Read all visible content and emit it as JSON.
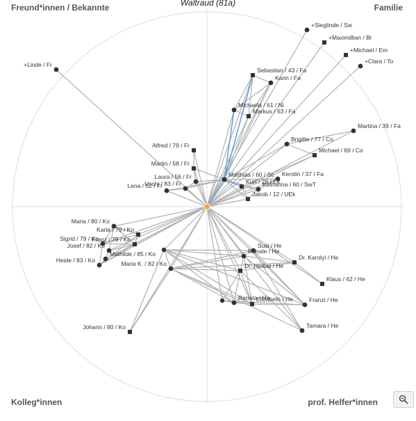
{
  "title": "Waltraud (81a)",
  "quadrants": {
    "top_left": "Freund*innen / Bekannte",
    "top_right": "Familie",
    "bottom_left": "Kolleg*innen",
    "bottom_right": "prof. Helfer*innen"
  },
  "colors": {
    "ego": "#f5a623",
    "node": "#333333",
    "edge": "#b0b0b0",
    "edge_highlight": "#6f9fd8",
    "circle": "#dddddd"
  },
  "icons": {
    "zoom": "zoom-icon"
  },
  "nodes": [
    {
      "id": "sieglinde",
      "label": "+Sieglinde / Sw",
      "shape": "circle"
    },
    {
      "id": "maximillian",
      "label": "+Maximillian / Br",
      "shape": "square"
    },
    {
      "id": "michael_em",
      "label": "+Michael / Em",
      "shape": "square"
    },
    {
      "id": "clara",
      "label": "+Clara / To",
      "shape": "circle"
    },
    {
      "id": "linde",
      "label": "+Linde / Fr",
      "shape": "circle"
    },
    {
      "id": "sebastian",
      "label": "Sebastian / 43 / Fa",
      "shape": "square"
    },
    {
      "id": "karin",
      "label": "Karin / Fa",
      "shape": "circle"
    },
    {
      "id": "michaela",
      "label": "Michaela / 61 / Ni",
      "shape": "circle"
    },
    {
      "id": "markus",
      "label": "Markus / 63 / Fa",
      "shape": "square"
    },
    {
      "id": "martina",
      "label": "Martina / 39 / Fa",
      "shape": "circle"
    },
    {
      "id": "brigitte",
      "label": "Brigitte / 77 / Co",
      "shape": "circle"
    },
    {
      "id": "michael_co",
      "label": "Michael / 69 / Co",
      "shape": "square"
    },
    {
      "id": "alfred",
      "label": "Alfred / 79 / Fr",
      "shape": "square"
    },
    {
      "id": "martin",
      "label": "Martin / 58 / Fr",
      "shape": "square"
    },
    {
      "id": "matthias",
      "label": "Matthias / 60 / Sc",
      "shape": "square"
    },
    {
      "id": "kerstin",
      "label": "Kerstin / 37 / Fa",
      "shape": "circle"
    },
    {
      "id": "laura",
      "label": "Laura / 56 / Fr",
      "shape": "circle"
    },
    {
      "id": "kurt",
      "label": "Kurt / 28 / Ek",
      "shape": "square"
    },
    {
      "id": "uschi",
      "label": "Uschi / 83 / Fr",
      "shape": "circle"
    },
    {
      "id": "katharina",
      "label": "Katharina / 60 / SwT",
      "shape": "circle"
    },
    {
      "id": "lena",
      "label": "Lena / 52 / Fr",
      "shape": "circle"
    },
    {
      "id": "jakob",
      "label": "Jakob / 12 / UEk",
      "shape": "square"
    },
    {
      "id": "maria80",
      "label": "Maria / 80 / Ko",
      "shape": "circle"
    },
    {
      "id": "karla",
      "label": "Karla / 79 / Ko",
      "shape": "square"
    },
    {
      "id": "franz",
      "label": "Franz / 79 / Ko",
      "shape": "square"
    },
    {
      "id": "sigrid",
      "label": "Sigrid / 79 / Ko",
      "shape": "circle"
    },
    {
      "id": "josef",
      "label": "Josef / 82 / Ko",
      "shape": "circle"
    },
    {
      "id": "mathilde",
      "label": "Mathilde / 85 / Ko",
      "shape": "circle"
    },
    {
      "id": "heide",
      "label": "Heide / 83 / Ko",
      "shape": "circle"
    },
    {
      "id": "mariak",
      "label": "Maria K. / 82 / Ko",
      "shape": "circle"
    },
    {
      "id": "johann",
      "label": "Johann / 80 / Ko",
      "shape": "square"
    },
    {
      "id": "susi",
      "label": "Susi / He",
      "shape": "circle"
    },
    {
      "id": "renate",
      "label": "Renate / He",
      "shape": "circle"
    },
    {
      "id": "karolyi",
      "label": "Dr. Karolyi / He",
      "shape": "square"
    },
    {
      "id": "herbst",
      "label": "Dr. Herbst / He",
      "shape": "square"
    },
    {
      "id": "klaus",
      "label": "Klaus / 62 / He",
      "shape": "square"
    },
    {
      "id": "renata",
      "label": "Renata / He",
      "shape": "circle"
    },
    {
      "id": "elizabeth",
      "label": "Elizabeth / He",
      "shape": "square"
    },
    {
      "id": "franzi",
      "label": "Franzi / He",
      "shape": "circle"
    },
    {
      "id": "tamara",
      "label": "Tamara / He",
      "shape": "circle"
    }
  ]
}
